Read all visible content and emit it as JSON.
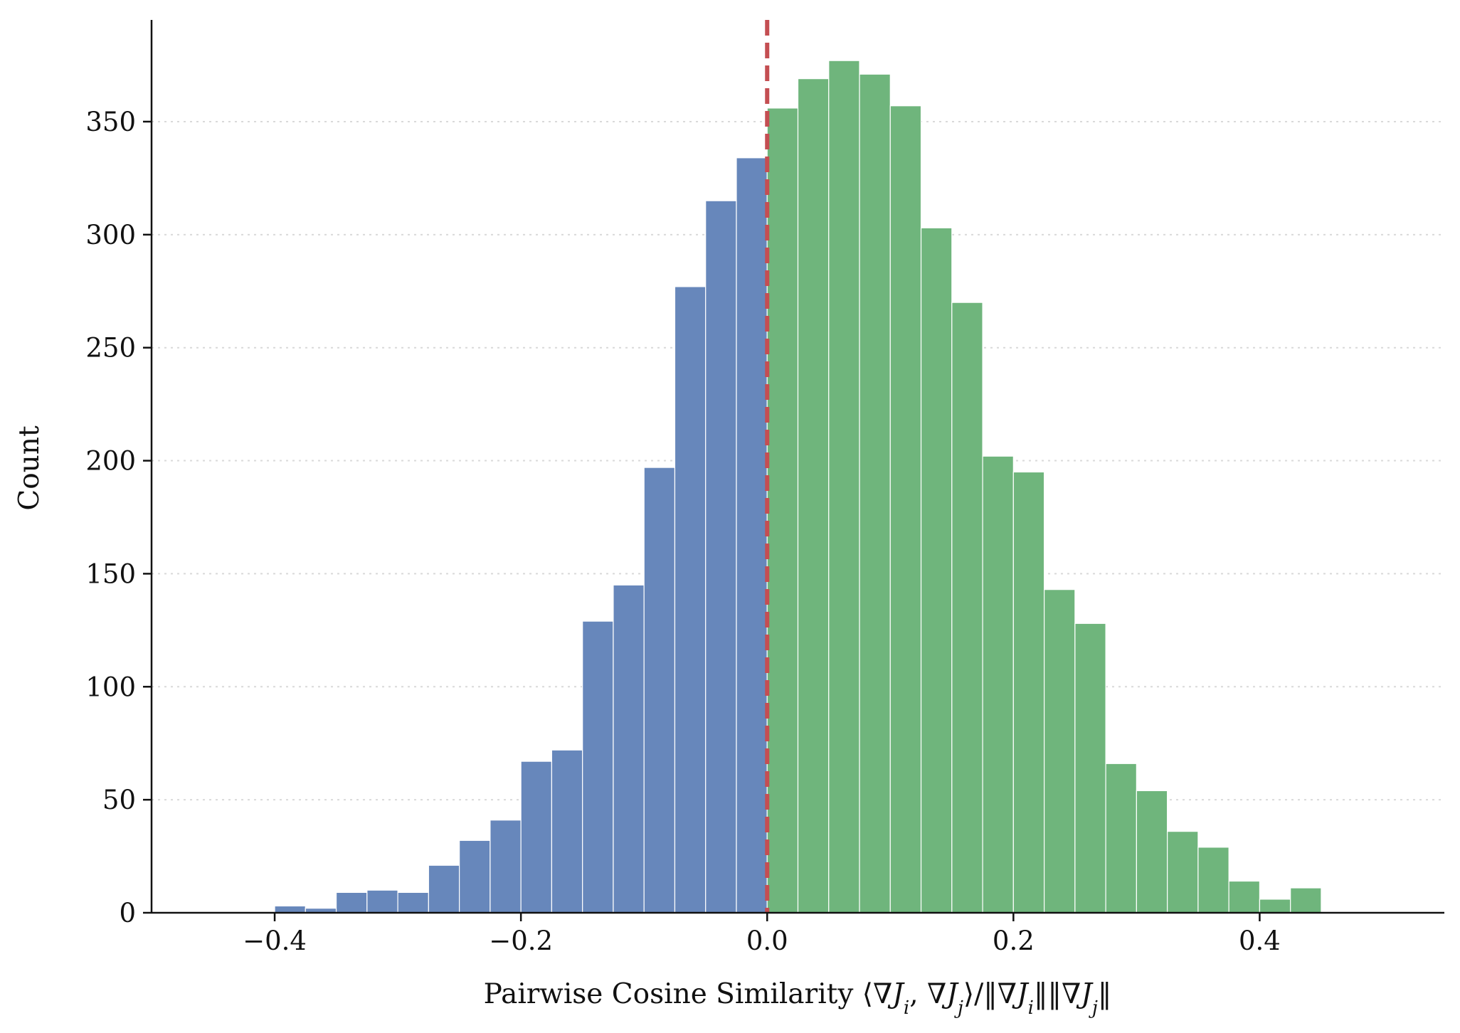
{
  "chart_data": {
    "type": "bar",
    "subtype": "histogram",
    "xlabel": "Pairwise Cosine Similarity ⟨∇J_i, ∇J_j⟩/‖∇J_i‖‖∇J_j‖",
    "ylabel": "Count",
    "xlim": [
      -0.5,
      0.55
    ],
    "ylim": [
      0,
      395
    ],
    "xticks": [
      -0.4,
      -0.2,
      0.0,
      0.2,
      0.4
    ],
    "xtick_labels": [
      "−0.4",
      "−0.2",
      "0.0",
      "0.2",
      "0.4"
    ],
    "yticks": [
      0,
      50,
      100,
      150,
      200,
      250,
      300,
      350
    ],
    "ytick_labels": [
      "0",
      "50",
      "100",
      "150",
      "200",
      "250",
      "300",
      "350"
    ],
    "grid": "y, dotted",
    "reference_line": {
      "x": 0.0,
      "style": "dashed",
      "color": "#c44e52"
    },
    "colors": {
      "negative": "#6787bb",
      "positive": "#6fb57c",
      "edge": "#ffffff",
      "grid": "#d9d9d9"
    },
    "bins": {
      "edges": [
        -0.4,
        -0.375,
        -0.35,
        -0.325,
        -0.3,
        -0.275,
        -0.25,
        -0.225,
        -0.2,
        -0.175,
        -0.15,
        -0.125,
        -0.1,
        -0.075,
        -0.05,
        -0.025,
        0.0,
        0.025,
        0.05,
        0.075,
        0.1,
        0.125,
        0.15,
        0.175,
        0.2,
        0.225,
        0.25,
        0.275,
        0.3,
        0.325,
        0.35,
        0.375,
        0.4,
        0.425,
        0.45
      ],
      "negative_counts": [
        3,
        2,
        9,
        10,
        9,
        21,
        32,
        41,
        67,
        72,
        129,
        145,
        197,
        277,
        315,
        334
      ],
      "positive_counts": [
        356,
        369,
        377,
        371,
        357,
        303,
        270,
        202,
        195,
        143,
        128,
        66,
        54,
        36,
        29,
        14,
        6,
        11
      ]
    }
  }
}
